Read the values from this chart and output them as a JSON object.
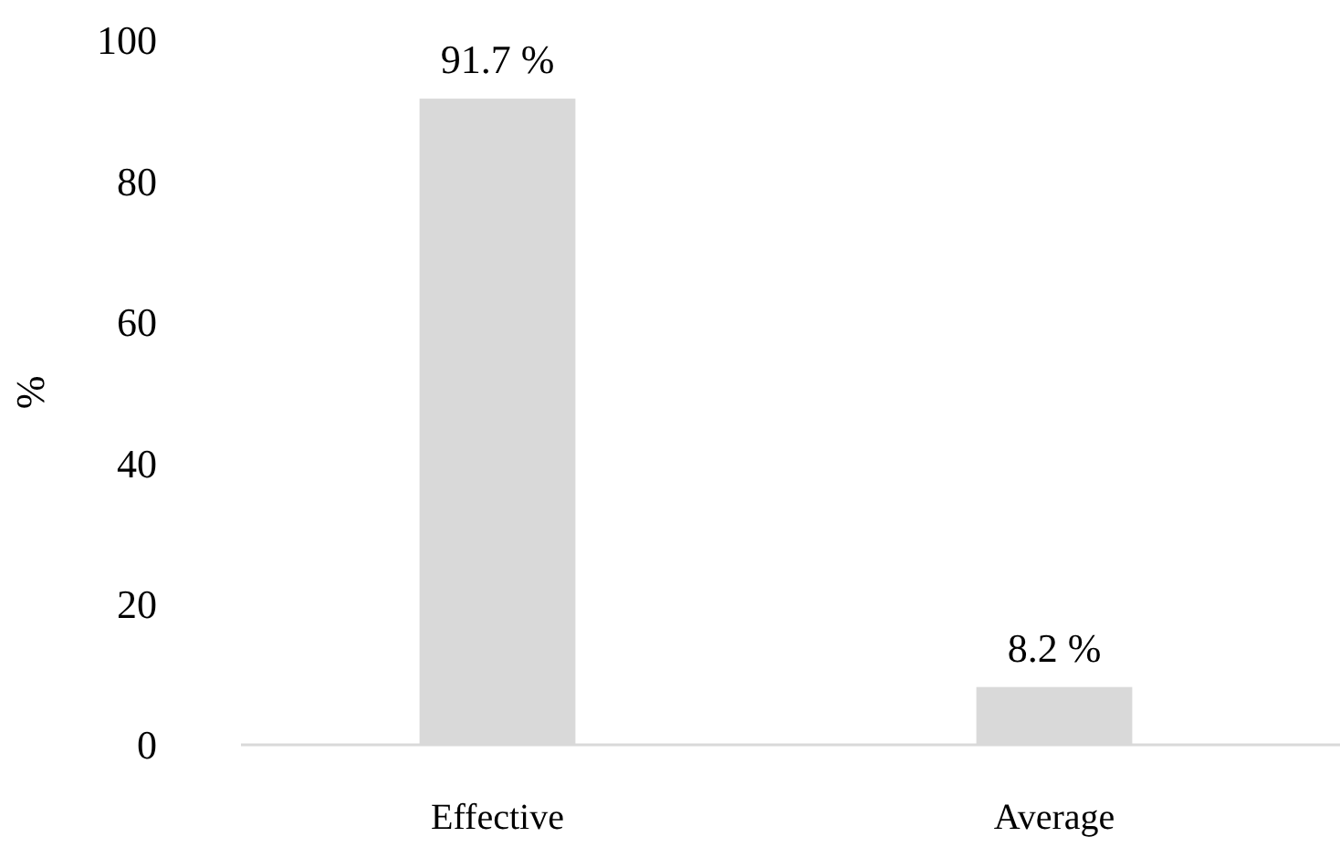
{
  "chart_data": {
    "type": "bar",
    "ylabel": "%",
    "categories": [
      "Effective",
      "Average"
    ],
    "values": [
      91.7,
      8.2
    ],
    "color": "#d9d9d9",
    "value_labels": [
      "91.7 %",
      "8.2 %"
    ],
    "ylim": [
      0,
      100
    ],
    "yticks": [
      0,
      20,
      40,
      60,
      80,
      100
    ],
    "grid": false
  }
}
